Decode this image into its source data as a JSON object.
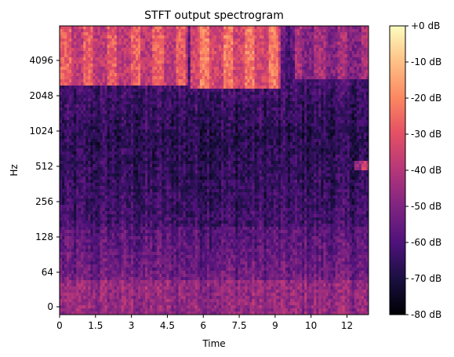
{
  "chart_data": {
    "type": "heatmap",
    "title": "STFT output spectrogram",
    "xlabel": "Time",
    "ylabel": "Hz",
    "xlim": [
      0,
      12.9
    ],
    "x_ticks": [
      0,
      1.5,
      3,
      4.5,
      6,
      7.5,
      9,
      10.5,
      12
    ],
    "x_tick_labels": [
      "0",
      "1.5",
      "3",
      "4.5",
      "6",
      "7.5",
      "9",
      "10",
      "12"
    ],
    "y_scale": "symlog",
    "y_ticks": [
      0,
      64,
      128,
      256,
      512,
      1024,
      2048,
      4096
    ],
    "y_tick_labels": [
      "0",
      "64",
      "128",
      "256",
      "512",
      "1024",
      "2048",
      "4096"
    ],
    "colormap": "magma",
    "colorbar": {
      "range": [
        -80,
        0
      ],
      "ticks": [
        0,
        -10,
        -20,
        -30,
        -40,
        -50,
        -60,
        -70,
        -80
      ],
      "tick_labels": [
        "+0 dB",
        "-10 dB",
        "-20 dB",
        "-30 dB",
        "-40 dB",
        "-50 dB",
        "-60 dB",
        "-70 dB",
        "-80 dB"
      ]
    },
    "features": [
      {
        "t_start": 0.0,
        "t_end": 5.4,
        "f_low": 2500,
        "f_high": 11000,
        "level_db": -20
      },
      {
        "t_start": 5.5,
        "t_end": 9.2,
        "f_low": 2300,
        "f_high": 11000,
        "level_db": -15
      },
      {
        "t_start": 9.8,
        "t_end": 12.9,
        "f_low": 2800,
        "f_high": 9000,
        "level_db": -35
      },
      {
        "t_start": 12.3,
        "t_end": 12.9,
        "f_low": 480,
        "f_high": 560,
        "level_db": -30
      }
    ],
    "grid": false
  }
}
